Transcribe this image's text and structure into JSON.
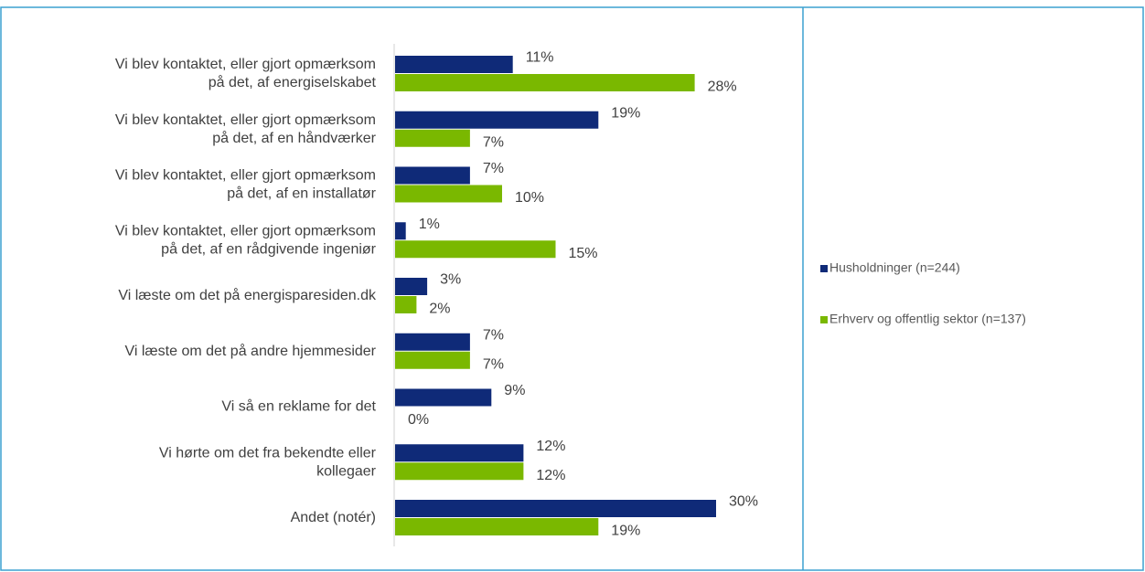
{
  "chart_data": {
    "type": "bar",
    "orientation": "horizontal",
    "categories": [
      [
        "Vi blev kontaktet, eller gjort opmærksom",
        "på det, af energiselskabet"
      ],
      [
        "Vi blev kontaktet, eller gjort opmærksom",
        "på det, af en håndværker"
      ],
      [
        "Vi blev kontaktet, eller gjort opmærksom",
        "på det, af en installatør"
      ],
      [
        "Vi blev kontaktet, eller gjort opmærksom",
        "på det, af en rådgivende ingeniør"
      ],
      [
        "Vi læste om det på energisparesiden.dk"
      ],
      [
        "Vi læste om det på andre hjemmesider"
      ],
      [
        "Vi så en reklame for det"
      ],
      [
        "Vi hørte om det fra bekendte eller",
        "kollegaer"
      ],
      [
        "Andet (notér)"
      ]
    ],
    "series": [
      {
        "name": "Husholdninger (n=244)",
        "color": "#0f2a78",
        "values": [
          11,
          19,
          7,
          1,
          3,
          7,
          9,
          12,
          30
        ],
        "value_labels": [
          "11%",
          "19%",
          "7%",
          "1%",
          "3%",
          "7%",
          "9%",
          "12%",
          "30%"
        ]
      },
      {
        "name": "Erhverv og offentlig sektor (n=137)",
        "color": "#7ab800",
        "values": [
          28,
          7,
          10,
          15,
          2,
          7,
          0,
          12,
          19
        ],
        "value_labels": [
          "28%",
          "7%",
          "10%",
          "15%",
          "2%",
          "7%",
          "0%",
          "12%",
          "19%"
        ]
      }
    ],
    "legend": "right"
  }
}
